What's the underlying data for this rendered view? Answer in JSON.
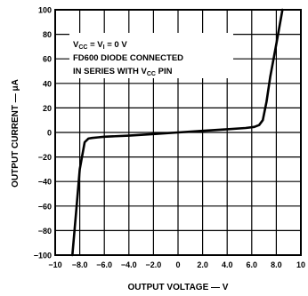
{
  "chart_data": {
    "type": "line",
    "xlabel": "OUTPUT VOLTAGE — V",
    "ylabel": "OUTPUT CURRENT — μA",
    "xlim": [
      -10,
      10
    ],
    "ylim": [
      -100,
      100
    ],
    "grid": true,
    "x_ticks": [
      -10,
      -8,
      -6,
      -4,
      -2,
      0,
      2,
      4,
      6,
      8,
      10
    ],
    "x_tick_labels": [
      "−10",
      "−8.0",
      "−6.0",
      "−4.0",
      "−2.0",
      "0",
      "2.0",
      "4.0",
      "6.0",
      "8.0",
      "10"
    ],
    "y_ticks": [
      -100,
      -80,
      -60,
      -40,
      -20,
      0,
      20,
      40,
      60,
      80,
      100
    ],
    "y_tick_labels": [
      "−100",
      "−80",
      "−60",
      "−40",
      "−20",
      "0",
      "20",
      "40",
      "60",
      "80",
      "100"
    ],
    "annotation": {
      "line1": {
        "a": "V",
        "a_sub": "CC",
        "b": " = V",
        "b_sub": "I",
        "c": " = 0 V"
      },
      "line2": "FD600 DIODE CONNECTED",
      "line3": {
        "a": "IN SERIES WITH V",
        "a_sub": "CC",
        "b": " PIN"
      }
    },
    "series": [
      {
        "color": "#000000",
        "x": [
          -8.6,
          -8.3,
          -8.0,
          -7.6,
          -7.3,
          -7.0,
          -6.5,
          -6.0,
          -4.0,
          -2.0,
          0.0,
          2.0,
          4.0,
          5.5,
          6.2,
          6.6,
          6.9,
          7.2,
          7.5,
          8.0,
          8.5
        ],
        "y": [
          -100,
          -65,
          -30,
          -8,
          -5,
          -4.5,
          -4,
          -3.5,
          -2.6,
          -1.3,
          0,
          1.3,
          2.6,
          3.6,
          4.5,
          6,
          10,
          25,
          45,
          72,
          100
        ]
      }
    ]
  }
}
